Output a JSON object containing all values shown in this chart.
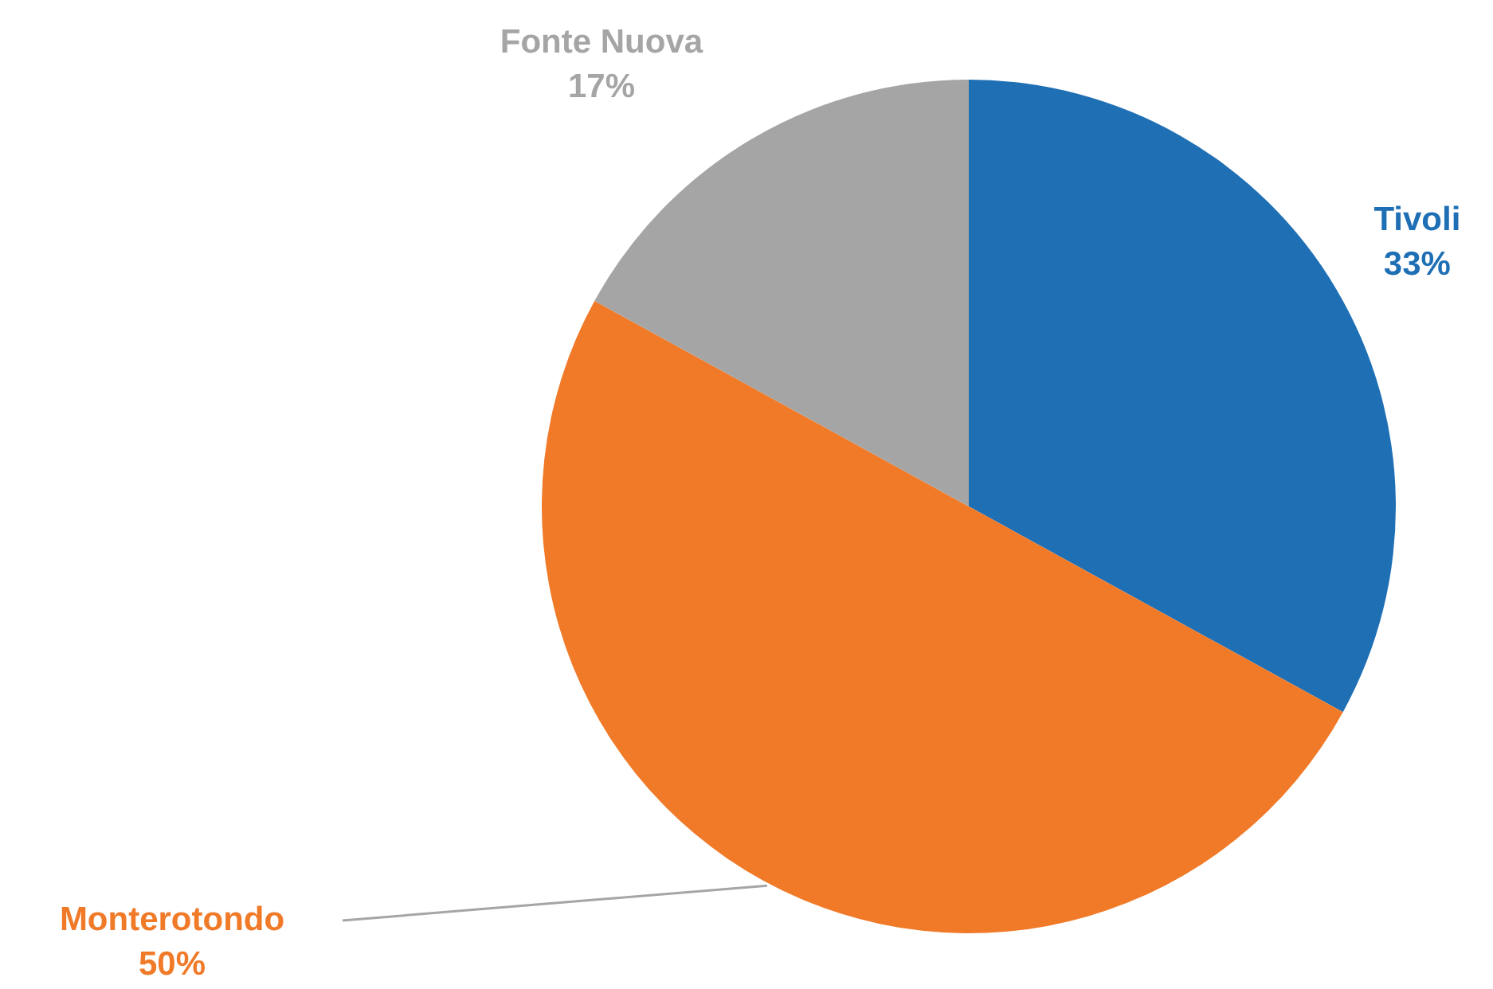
{
  "chart_data": {
    "type": "pie",
    "categories": [
      "Tivoli",
      "Monterotondo",
      "Fonte Nuova"
    ],
    "values": [
      33,
      50,
      17
    ],
    "colors": [
      "#1f6fb5",
      "#f07a28",
      "#a5a5a5"
    ],
    "value_labels": [
      "33%",
      "50%",
      "17%"
    ],
    "legend": false
  }
}
